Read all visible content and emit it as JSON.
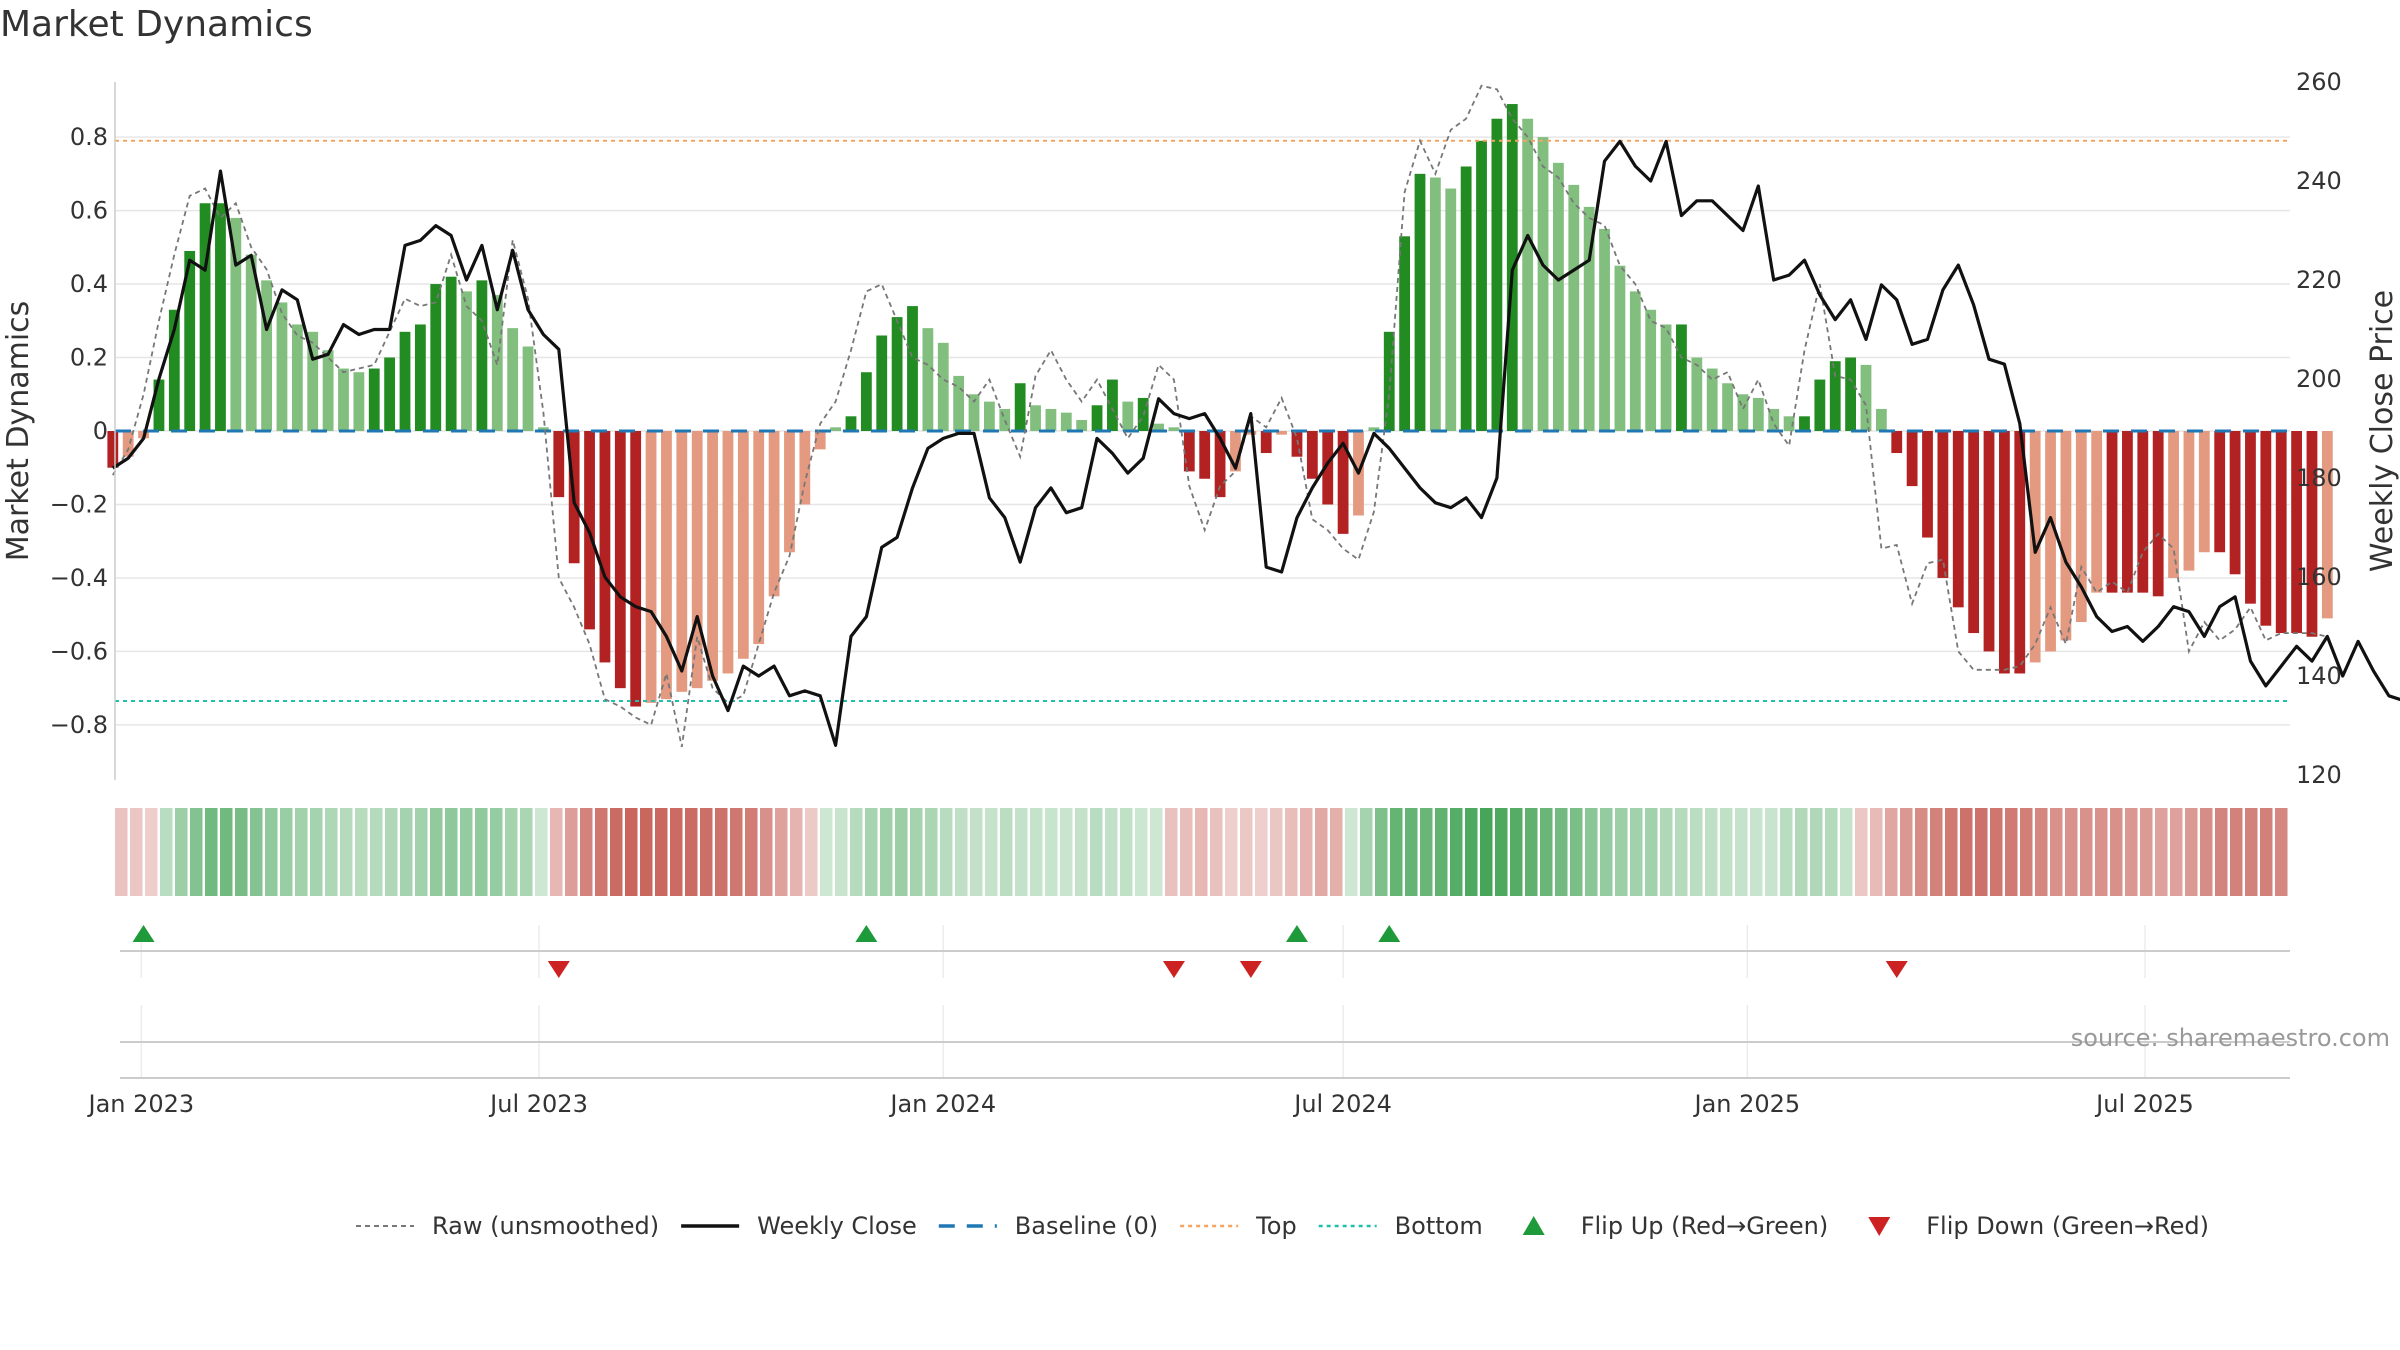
{
  "chart_data": {
    "type": "bar",
    "title": "Market Dynamics",
    "ylabel": "Market Dynamics",
    "y2label": "Weekly Close Price",
    "ylim": [
      -0.95,
      0.95
    ],
    "y2lim": [
      120,
      260
    ],
    "xlim": [
      "2022-12-20",
      "2025-09-05"
    ],
    "y_ticks": [
      -0.8,
      -0.6,
      -0.4,
      -0.2,
      0,
      0.2,
      0.4,
      0.6,
      0.8
    ],
    "y_tick_labels": [
      "−0.8",
      "−0.6",
      "−0.4",
      "−0.2",
      "0",
      "0.2",
      "0.4",
      "0.6",
      "0.8"
    ],
    "y2_ticks": [
      120,
      140,
      160,
      180,
      200,
      220,
      240,
      260
    ],
    "x_ticks": [
      {
        "date": "2023-01-01",
        "label": "Jan 2023"
      },
      {
        "date": "2023-07-01",
        "label": "Jul 2023"
      },
      {
        "date": "2024-01-01",
        "label": "Jan 2024"
      },
      {
        "date": "2024-07-01",
        "label": "Jul 2024"
      },
      {
        "date": "2025-01-01",
        "label": "Jan 2025"
      },
      {
        "date": "2025-07-01",
        "label": "Jul 2025"
      }
    ],
    "start_week": "2022-12-19",
    "top_level": 0.79,
    "bottom_level": -0.735,
    "baseline": 0,
    "grid": true,
    "legend_position": "bottom",
    "colors": {
      "green_strong": "#228b22",
      "green_light": "#82bf7f",
      "red_strong": "#b22222",
      "red_light": "#e49a80",
      "close_line": "#111111",
      "raw_line": "#777777",
      "baseline": "#1f77b4",
      "top": "#f4a460",
      "bottom": "#20c0b0",
      "flip_up": "#1e9a3a",
      "flip_down": "#cc2222",
      "grid": "#e6e6e6"
    },
    "series": [
      {
        "name": "Market Dynamics",
        "values": [
          -0.1,
          -0.07,
          -0.02,
          0.14,
          0.33,
          0.49,
          0.62,
          0.62,
          0.58,
          0.48,
          0.41,
          0.35,
          0.29,
          0.27,
          0.22,
          0.17,
          0.16,
          0.17,
          0.2,
          0.27,
          0.29,
          0.4,
          0.42,
          0.38,
          0.41,
          0.37,
          0.28,
          0.23,
          0.01,
          -0.18,
          -0.36,
          -0.54,
          -0.63,
          -0.7,
          -0.75,
          -0.74,
          -0.73,
          -0.71,
          -0.7,
          -0.68,
          -0.66,
          -0.62,
          -0.58,
          -0.45,
          -0.33,
          -0.2,
          -0.05,
          0.01,
          0.04,
          0.16,
          0.26,
          0.31,
          0.34,
          0.28,
          0.24,
          0.15,
          0.1,
          0.08,
          0.06,
          0.13,
          0.07,
          0.06,
          0.05,
          0.03,
          0.07,
          0.14,
          0.08,
          0.09,
          0.02,
          0.01,
          -0.11,
          -0.13,
          -0.18,
          -0.11,
          -0.01,
          -0.06,
          -0.01,
          -0.07,
          -0.13,
          -0.2,
          -0.28,
          -0.23,
          0.01,
          0.27,
          0.53,
          0.7,
          0.69,
          0.66,
          0.72,
          0.79,
          0.85,
          0.89,
          0.85,
          0.8,
          0.73,
          0.67,
          0.61,
          0.55,
          0.45,
          0.38,
          0.33,
          0.29,
          0.29,
          0.2,
          0.17,
          0.13,
          0.1,
          0.09,
          0.06,
          0.04,
          0.04,
          0.14,
          0.19,
          0.2,
          0.18,
          0.06,
          -0.06,
          -0.15,
          -0.29,
          -0.4,
          -0.48,
          -0.55,
          -0.6,
          -0.66,
          -0.66,
          -0.63,
          -0.6,
          -0.57,
          -0.52,
          -0.44,
          -0.44,
          -0.44,
          -0.44,
          -0.45,
          -0.4,
          -0.38,
          -0.33,
          -0.33,
          -0.39,
          -0.47,
          -0.53,
          -0.55,
          -0.55,
          -0.56,
          -0.51
        ]
      },
      {
        "name": "Weekly Close",
        "values": [
          182,
          184,
          188,
          200,
          210,
          224,
          222,
          242,
          223,
          225,
          210,
          218,
          216,
          204,
          205,
          211,
          209,
          210,
          210,
          227,
          228,
          231,
          229,
          220,
          227,
          214,
          226,
          214,
          209,
          206,
          175,
          169,
          160,
          156,
          154,
          153,
          148,
          141,
          152,
          140,
          133,
          142,
          140,
          142,
          136,
          137,
          136,
          126,
          148,
          152,
          166,
          168,
          178,
          186,
          188,
          189,
          189,
          176,
          172,
          163,
          174,
          178,
          173,
          174,
          188,
          185,
          181,
          184,
          196,
          193,
          192,
          193,
          188,
          182,
          193,
          162,
          161,
          172,
          178,
          183,
          187,
          181,
          189,
          186,
          182,
          178,
          175,
          174,
          176,
          172,
          180,
          222,
          229,
          223,
          220,
          222,
          224,
          244,
          248,
          243,
          240,
          248,
          233,
          236,
          236,
          233,
          230,
          239,
          220,
          221,
          224,
          217,
          212,
          216,
          208,
          219,
          216,
          207,
          208,
          218,
          223,
          215,
          204,
          203,
          191,
          165,
          172,
          163,
          158,
          152,
          149,
          150,
          147,
          150,
          154,
          153,
          148,
          154,
          156,
          143,
          138,
          142,
          146,
          143,
          148,
          140,
          147,
          141,
          136,
          135,
          136,
          135,
          137,
          139,
          137,
          135
        ]
      },
      {
        "name": "Raw (unsmoothed)",
        "values": [
          -0.12,
          -0.05,
          0.1,
          0.3,
          0.48,
          0.64,
          0.66,
          0.58,
          0.62,
          0.5,
          0.44,
          0.32,
          0.26,
          0.24,
          0.2,
          0.16,
          0.17,
          0.18,
          0.27,
          0.36,
          0.34,
          0.35,
          0.48,
          0.34,
          0.3,
          0.18,
          0.52,
          0.36,
          0.05,
          -0.4,
          -0.48,
          -0.58,
          -0.73,
          -0.75,
          -0.78,
          -0.8,
          -0.66,
          -0.86,
          -0.56,
          -0.7,
          -0.74,
          -0.72,
          -0.58,
          -0.44,
          -0.34,
          -0.14,
          0.02,
          0.08,
          0.22,
          0.38,
          0.4,
          0.3,
          0.2,
          0.18,
          0.14,
          0.12,
          0.08,
          0.14,
          0.03,
          -0.07,
          0.15,
          0.22,
          0.14,
          0.08,
          0.14,
          0.06,
          -0.02,
          0.04,
          0.18,
          0.14,
          -0.15,
          -0.27,
          -0.15,
          -0.11,
          0.04,
          0.01,
          0.09,
          -0.02,
          -0.24,
          -0.27,
          -0.32,
          -0.35,
          -0.22,
          0.1,
          0.65,
          0.79,
          0.7,
          0.82,
          0.85,
          0.94,
          0.93,
          0.85,
          0.8,
          0.72,
          0.69,
          0.62,
          0.58,
          0.56,
          0.45,
          0.4,
          0.3,
          0.28,
          0.2,
          0.18,
          0.14,
          0.16,
          0.06,
          0.14,
          0.02,
          -0.04,
          0.22,
          0.4,
          0.15,
          0.14,
          0.07,
          -0.32,
          -0.31,
          -0.47,
          -0.36,
          -0.35,
          -0.6,
          -0.65,
          -0.65,
          -0.65,
          -0.64,
          -0.58,
          -0.48,
          -0.58,
          -0.37,
          -0.44,
          -0.41,
          -0.44,
          -0.33,
          -0.28,
          -0.32,
          -0.6,
          -0.52,
          -0.57,
          -0.54,
          -0.48,
          -0.57,
          -0.55,
          -0.55,
          -0.55,
          -0.56,
          -0.5
        ]
      },
      {
        "name": "Baseline (0)"
      },
      {
        "name": "Top"
      },
      {
        "name": "Bottom"
      },
      {
        "name": "Flip Up (Red→Green)",
        "dates": [
          "2023-01-02",
          "2023-11-27",
          "2024-06-10",
          "2024-07-22"
        ]
      },
      {
        "name": "Flip Down (Green→Red)",
        "dates": [
          "2023-07-10",
          "2024-04-15",
          "2024-05-20",
          "2025-03-10"
        ]
      }
    ]
  },
  "legend": [
    {
      "key": "raw",
      "label": "Raw (unsmoothed)"
    },
    {
      "key": "close",
      "label": "Weekly Close"
    },
    {
      "key": "baseline",
      "label": "Baseline (0)"
    },
    {
      "key": "top",
      "label": "Top"
    },
    {
      "key": "bottom",
      "label": "Bottom"
    },
    {
      "key": "flip_up",
      "label": "Flip Up (Red→Green)"
    },
    {
      "key": "flip_down",
      "label": "Flip Down (Green→Red)"
    }
  ],
  "source": "source: sharemaestro.com"
}
